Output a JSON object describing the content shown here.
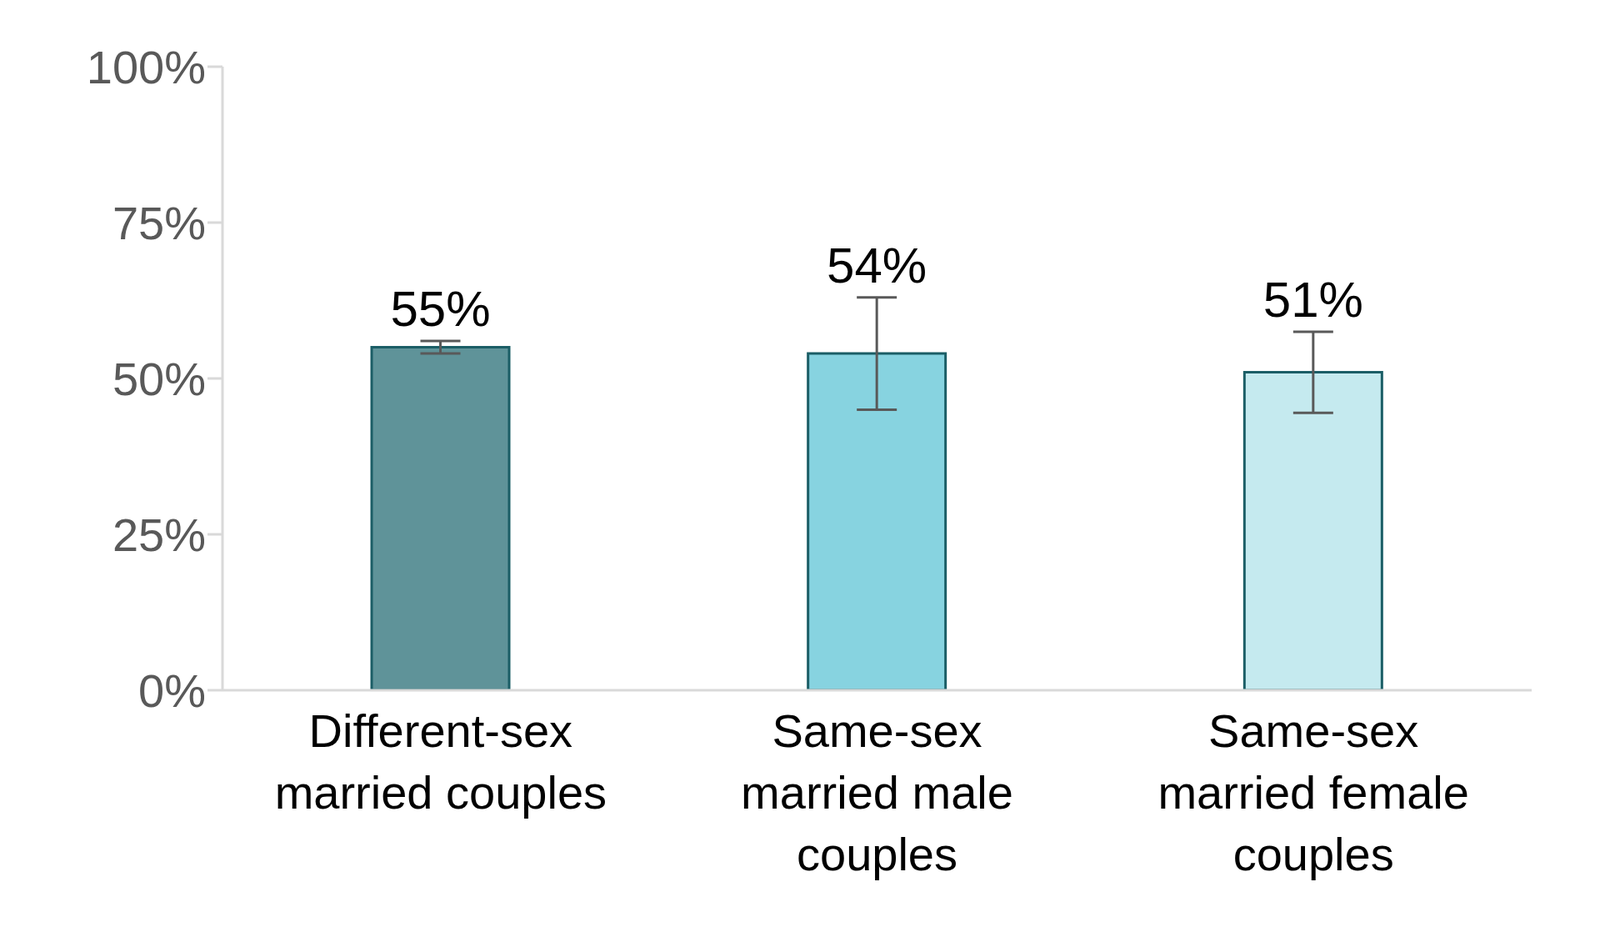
{
  "chart_data": {
    "type": "bar",
    "categories": [
      "Different-sex married couples",
      "Same-sex married male couples",
      "Same-sex married female couples"
    ],
    "values": [
      55,
      54,
      51
    ],
    "value_labels": [
      "55%",
      "54%",
      "51%"
    ],
    "errors": [
      1,
      9,
      6.5
    ],
    "colors": [
      "#5f9399",
      "#87d3e0",
      "#c5eaef"
    ],
    "ylim": [
      0,
      100
    ],
    "yticks": [
      {
        "value": 0,
        "label": "0%"
      },
      {
        "value": 25,
        "label": "25%"
      },
      {
        "value": 50,
        "label": "50%"
      },
      {
        "value": 75,
        "label": "75%"
      },
      {
        "value": 100,
        "label": "100%"
      }
    ],
    "data_labels": true,
    "grid": false
  }
}
